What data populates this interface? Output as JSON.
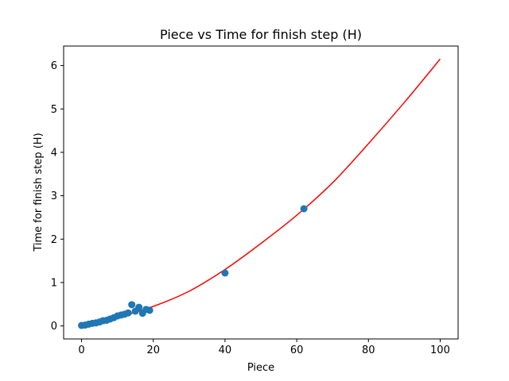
{
  "chart_data": {
    "type": "scatter",
    "title": "Piece vs Time for finish step (H)",
    "xlabel": "Piece",
    "ylabel": "Time for finish step (H)",
    "xlim": [
      -5,
      105
    ],
    "ylim": [
      -0.3,
      6.45
    ],
    "xticks": [
      0,
      20,
      40,
      60,
      80,
      100
    ],
    "yticks": [
      0,
      1,
      2,
      3,
      4,
      5,
      6
    ],
    "grid": false,
    "points_color": "#1f77b4",
    "curve_color": "#ff0000",
    "points": [
      {
        "x": 0,
        "y": 0.01
      },
      {
        "x": 1,
        "y": 0.02
      },
      {
        "x": 2,
        "y": 0.04
      },
      {
        "x": 3,
        "y": 0.06
      },
      {
        "x": 4,
        "y": 0.07
      },
      {
        "x": 5,
        "y": 0.09
      },
      {
        "x": 6,
        "y": 0.12
      },
      {
        "x": 7,
        "y": 0.13
      },
      {
        "x": 8,
        "y": 0.16
      },
      {
        "x": 9,
        "y": 0.19
      },
      {
        "x": 10,
        "y": 0.23
      },
      {
        "x": 11,
        "y": 0.25
      },
      {
        "x": 12,
        "y": 0.27
      },
      {
        "x": 13,
        "y": 0.3
      },
      {
        "x": 14,
        "y": 0.49
      },
      {
        "x": 15,
        "y": 0.34
      },
      {
        "x": 16,
        "y": 0.43
      },
      {
        "x": 17,
        "y": 0.29
      },
      {
        "x": 18,
        "y": 0.38
      },
      {
        "x": 19,
        "y": 0.36
      },
      {
        "x": 40,
        "y": 1.22
      },
      {
        "x": 62,
        "y": 2.7
      }
    ],
    "fit_curve": [
      {
        "x": 0,
        "y": 0.02
      },
      {
        "x": 10,
        "y": 0.2
      },
      {
        "x": 20,
        "y": 0.45
      },
      {
        "x": 30,
        "y": 0.8
      },
      {
        "x": 40,
        "y": 1.3
      },
      {
        "x": 50,
        "y": 1.9
      },
      {
        "x": 60,
        "y": 2.55
      },
      {
        "x": 70,
        "y": 3.3
      },
      {
        "x": 80,
        "y": 4.2
      },
      {
        "x": 90,
        "y": 5.15
      },
      {
        "x": 100,
        "y": 6.15
      }
    ]
  }
}
